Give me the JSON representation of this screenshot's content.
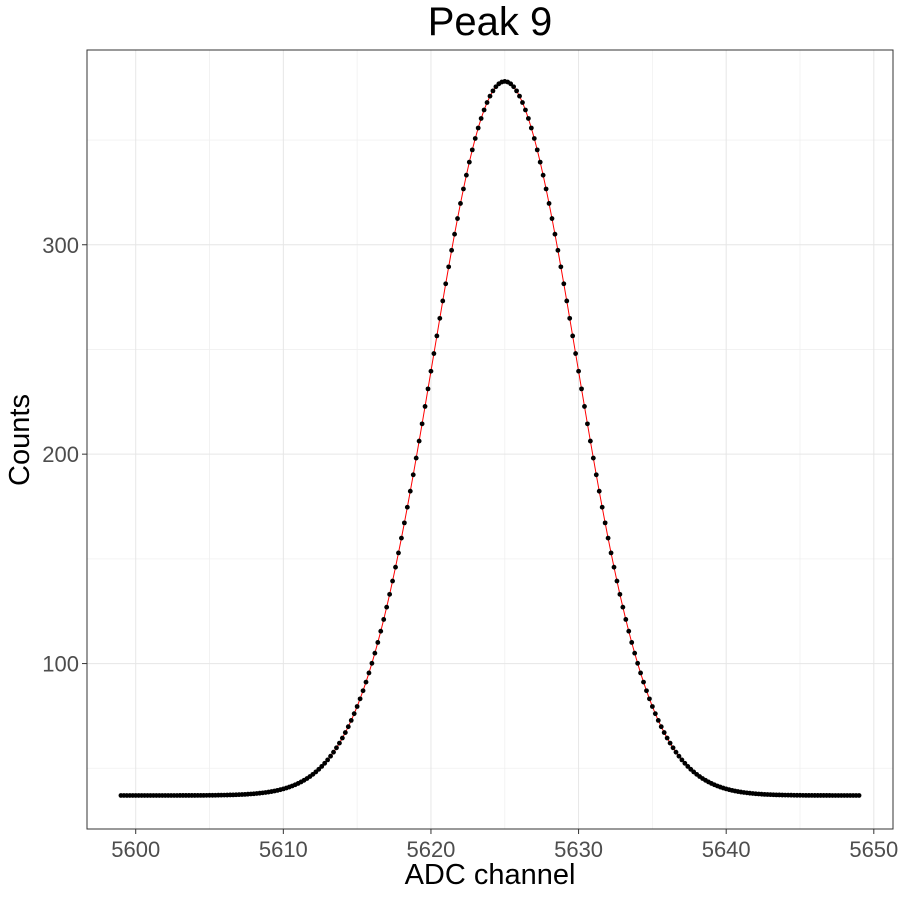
{
  "chart_data": {
    "type": "scatter",
    "title": "Peak 9",
    "xlabel": "ADC channel",
    "ylabel": "Counts",
    "xlim": [
      5596.7,
      5651.3
    ],
    "ylim": [
      21,
      393
    ],
    "x_ticks": [
      5600,
      5610,
      5620,
      5630,
      5640,
      5650
    ],
    "y_ticks": [
      100,
      200,
      300
    ],
    "grid": true,
    "legend": "none",
    "model": {
      "form": "gaussian_plus_constant",
      "baseline": 37,
      "amplitude": 341,
      "center": 5625,
      "sigma": 4.9
    },
    "x_start": 5599,
    "x_end": 5649,
    "x_step": 0.2,
    "series": [
      {
        "kind": "points",
        "color": "#000000"
      },
      {
        "kind": "fit-line",
        "color": "#ff0000"
      }
    ]
  }
}
